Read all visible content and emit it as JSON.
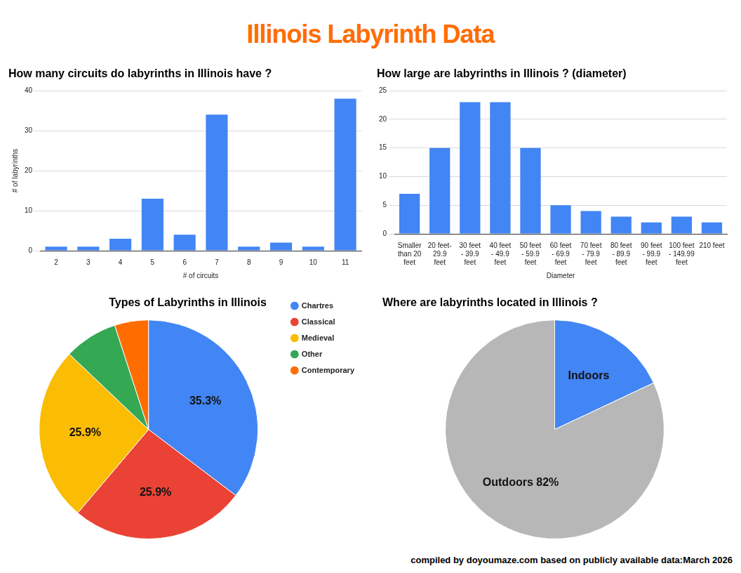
{
  "title": "Illinois Labyrinth Data",
  "footer": "compiled by doyoumaze.com based on publicly available data:March 2026",
  "chart_data": [
    {
      "type": "bar",
      "title": "How many circuits do labyrinths in Illinois have ?",
      "xlabel": "# of circuits",
      "ylabel": "# of labyrinths",
      "categories": [
        "2",
        "3",
        "4",
        "5",
        "6",
        "7",
        "8",
        "9",
        "10",
        "11"
      ],
      "values": [
        1,
        1,
        3,
        13,
        4,
        34,
        1,
        2,
        1,
        38
      ],
      "color": "#4285f4",
      "ylim": [
        0,
        40
      ],
      "yticks": [
        0,
        10,
        20,
        30,
        40
      ],
      "grid": true
    },
    {
      "type": "bar",
      "title": "How large are labyrinths in Illinois ? (diameter)",
      "xlabel": "Diameter",
      "categories": [
        "Smaller than 20 feet",
        "20 feet-29.9 feet",
        "30 feet - 39.9 feet",
        "40 feet - 49.9 feet",
        "50 feet - 59.9 feet",
        "60 feet - 69.9 feet",
        "70 feet - 79.9 feet",
        "80 feet - 89.9 feet",
        "90 feet - 99.9 feet",
        "100 feet - 149.99 feet",
        "210 feet"
      ],
      "values": [
        7,
        15,
        23,
        23,
        15,
        5,
        4,
        3,
        2,
        3,
        2
      ],
      "color": "#4285f4",
      "ylim": [
        0,
        25
      ],
      "yticks": [
        0,
        5,
        10,
        15,
        20,
        25
      ],
      "grid": true
    },
    {
      "type": "pie",
      "title": "Types of Labyrinths in Illinois",
      "categories": [
        "Chartres",
        "Classical",
        "Medieval",
        "Other",
        "Contemporary"
      ],
      "values": [
        35.3,
        25.9,
        25.9,
        7.9,
        5.0
      ],
      "value_labels": [
        "35.3%",
        "25.9%",
        "25.9%",
        null,
        null
      ],
      "colors": [
        "#4285f4",
        "#ea4335",
        "#fbbc04",
        "#34a853",
        "#ff6d01"
      ],
      "data_labels": true,
      "legend": "right"
    },
    {
      "type": "pie",
      "title": "Where are labyrinths located in Illinois ?",
      "categories": [
        "Indoors",
        "Outdoors"
      ],
      "values": [
        18,
        82
      ],
      "value_labels": [
        null,
        "82%"
      ],
      "colors": [
        "#4285f4",
        "#b7b7b7"
      ],
      "data_labels": true
    }
  ]
}
